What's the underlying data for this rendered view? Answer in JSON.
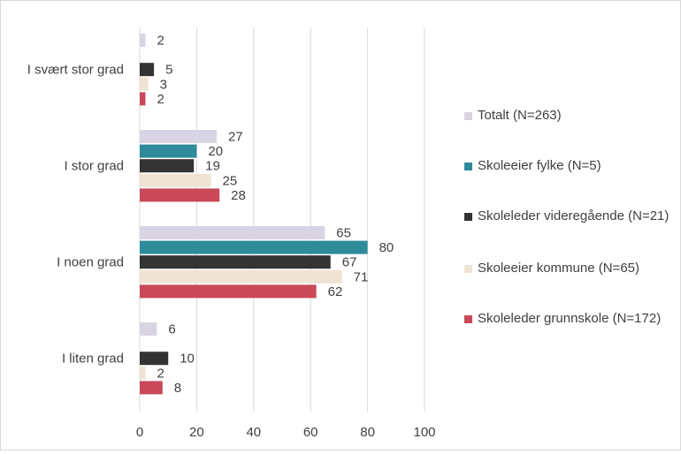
{
  "chart_data": {
    "type": "bar",
    "orientation": "horizontal",
    "categories": [
      "I svært stor grad",
      "I stor grad",
      "I noen grad",
      "I liten grad"
    ],
    "series": [
      {
        "name": "Totalt (N=263)",
        "color": "#d9d4e3",
        "values": [
          2,
          27,
          65,
          6
        ]
      },
      {
        "name": "Skoleeier fylke (N=5)",
        "color": "#2e8b9a",
        "values": [
          null,
          20,
          80,
          null
        ]
      },
      {
        "name": "Skoleleder videregående (N=21)",
        "color": "#333333",
        "values": [
          5,
          19,
          67,
          10
        ]
      },
      {
        "name": "Skoleeier kommune (N=65)",
        "color": "#efe3d4",
        "values": [
          3,
          25,
          71,
          2
        ]
      },
      {
        "name": "Skoleleder grunnskole (N=172)",
        "color": "#c9485a",
        "values": [
          2,
          28,
          62,
          8
        ]
      }
    ],
    "xlim": [
      0,
      100
    ],
    "xticks": [
      0,
      20,
      40,
      60,
      80,
      100
    ],
    "grid": true,
    "legend_position": "right"
  }
}
